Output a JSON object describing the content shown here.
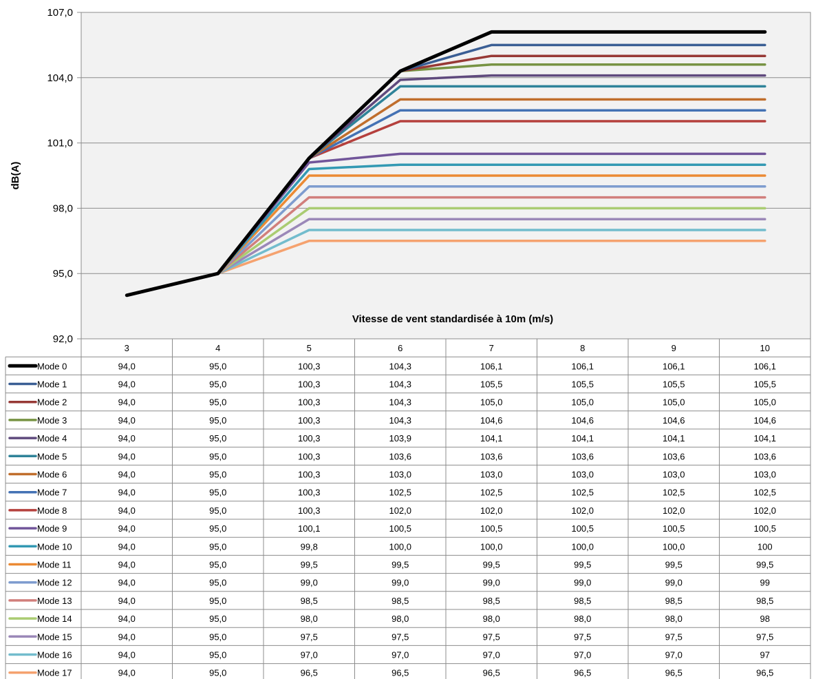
{
  "chart_data": {
    "type": "line",
    "title": "",
    "xlabel": "Vitesse de vent  standardisée à 10m (m/s)",
    "ylabel": "dB(A)",
    "ylim": [
      92,
      107
    ],
    "yticks": [
      "92,0",
      "95,0",
      "98,0",
      "101,0",
      "104,0",
      "107,0"
    ],
    "categories": [
      "3",
      "4",
      "5",
      "6",
      "7",
      "8",
      "9",
      "10"
    ],
    "grid": true,
    "legend": "data-table-left",
    "series": [
      {
        "name": "Mode 0",
        "color": "#000000",
        "values": [
          94.0,
          95.0,
          100.3,
          104.3,
          106.1,
          106.1,
          106.1,
          106.1
        ],
        "labels": [
          "94,0",
          "95,0",
          "100,3",
          "104,3",
          "106,1",
          "106,1",
          "106,1",
          "106,1"
        ]
      },
      {
        "name": "Mode 1",
        "color": "#3a5e94",
        "values": [
          94.0,
          95.0,
          100.3,
          104.3,
          105.5,
          105.5,
          105.5,
          105.5
        ],
        "labels": [
          "94,0",
          "95,0",
          "100,3",
          "104,3",
          "105,5",
          "105,5",
          "105,5",
          "105,5"
        ]
      },
      {
        "name": "Mode 2",
        "color": "#973935",
        "values": [
          94.0,
          95.0,
          100.3,
          104.3,
          105.0,
          105.0,
          105.0,
          105.0
        ],
        "labels": [
          "94,0",
          "95,0",
          "100,3",
          "104,3",
          "105,0",
          "105,0",
          "105,0",
          "105,0"
        ]
      },
      {
        "name": "Mode 3",
        "color": "#779343",
        "values": [
          94.0,
          95.0,
          100.3,
          104.3,
          104.6,
          104.6,
          104.6,
          104.6
        ],
        "labels": [
          "94,0",
          "95,0",
          "100,3",
          "104,3",
          "104,6",
          "104,6",
          "104,6",
          "104,6"
        ]
      },
      {
        "name": "Mode 4",
        "color": "#5f4a7d",
        "values": [
          94.0,
          95.0,
          100.3,
          103.9,
          104.1,
          104.1,
          104.1,
          104.1
        ],
        "labels": [
          "94,0",
          "95,0",
          "100,3",
          "103,9",
          "104,1",
          "104,1",
          "104,1",
          "104,1"
        ]
      },
      {
        "name": "Mode 5",
        "color": "#2f8399",
        "values": [
          94.0,
          95.0,
          100.3,
          103.6,
          103.6,
          103.6,
          103.6,
          103.6
        ],
        "labels": [
          "94,0",
          "95,0",
          "100,3",
          "103,6",
          "103,6",
          "103,6",
          "103,6",
          "103,6"
        ]
      },
      {
        "name": "Mode 6",
        "color": "#c06e2c",
        "values": [
          94.0,
          95.0,
          100.3,
          103.0,
          103.0,
          103.0,
          103.0,
          103.0
        ],
        "labels": [
          "94,0",
          "95,0",
          "100,3",
          "103,0",
          "103,0",
          "103,0",
          "103,0",
          "103,0"
        ]
      },
      {
        "name": "Mode 7",
        "color": "#4472b4",
        "values": [
          94.0,
          95.0,
          100.3,
          102.5,
          102.5,
          102.5,
          102.5,
          102.5
        ],
        "labels": [
          "94,0",
          "95,0",
          "100,3",
          "102,5",
          "102,5",
          "102,5",
          "102,5",
          "102,5"
        ]
      },
      {
        "name": "Mode 8",
        "color": "#b5403d",
        "values": [
          94.0,
          95.0,
          100.3,
          102.0,
          102.0,
          102.0,
          102.0,
          102.0
        ],
        "labels": [
          "94,0",
          "95,0",
          "100,3",
          "102,0",
          "102,0",
          "102,0",
          "102,0",
          "102,0"
        ]
      },
      {
        "name": "Mode 9",
        "color": "#71559a",
        "values": [
          94.0,
          95.0,
          100.1,
          100.5,
          100.5,
          100.5,
          100.5,
          100.5
        ],
        "labels": [
          "94,0",
          "95,0",
          "100,1",
          "100,5",
          "100,5",
          "100,5",
          "100,5",
          "100,5"
        ]
      },
      {
        "name": "Mode 10",
        "color": "#3399b3",
        "values": [
          94.0,
          95.0,
          99.8,
          100.0,
          100.0,
          100.0,
          100.0,
          100.0
        ],
        "labels": [
          "94,0",
          "95,0",
          "99,8",
          "100,0",
          "100,0",
          "100,0",
          "100,0",
          "100"
        ]
      },
      {
        "name": "Mode 11",
        "color": "#eb8a34",
        "values": [
          94.0,
          95.0,
          99.5,
          99.5,
          99.5,
          99.5,
          99.5,
          99.5
        ],
        "labels": [
          "94,0",
          "95,0",
          "99,5",
          "99,5",
          "99,5",
          "99,5",
          "99,5",
          "99,5"
        ]
      },
      {
        "name": "Mode 12",
        "color": "#7e9ccf",
        "values": [
          94.0,
          95.0,
          99.0,
          99.0,
          99.0,
          99.0,
          99.0,
          99.0
        ],
        "labels": [
          "94,0",
          "95,0",
          "99,0",
          "99,0",
          "99,0",
          "99,0",
          "99,0",
          "99"
        ]
      },
      {
        "name": "Mode 13",
        "color": "#d17f7c",
        "values": [
          94.0,
          95.0,
          98.5,
          98.5,
          98.5,
          98.5,
          98.5,
          98.5
        ],
        "labels": [
          "94,0",
          "95,0",
          "98,5",
          "98,5",
          "98,5",
          "98,5",
          "98,5",
          "98,5"
        ]
      },
      {
        "name": "Mode 14",
        "color": "#aacc72",
        "values": [
          94.0,
          95.0,
          98.0,
          98.0,
          98.0,
          98.0,
          98.0,
          98.0
        ],
        "labels": [
          "94,0",
          "95,0",
          "98,0",
          "98,0",
          "98,0",
          "98,0",
          "98,0",
          "98"
        ]
      },
      {
        "name": "Mode 15",
        "color": "#9b88b8",
        "values": [
          94.0,
          95.0,
          97.5,
          97.5,
          97.5,
          97.5,
          97.5,
          97.5
        ],
        "labels": [
          "94,0",
          "95,0",
          "97,5",
          "97,5",
          "97,5",
          "97,5",
          "97,5",
          "97,5"
        ]
      },
      {
        "name": "Mode 16",
        "color": "#72bccd",
        "values": [
          94.0,
          95.0,
          97.0,
          97.0,
          97.0,
          97.0,
          97.0,
          97.0
        ],
        "labels": [
          "94,0",
          "95,0",
          "97,0",
          "97,0",
          "97,0",
          "97,0",
          "97,0",
          "97"
        ]
      },
      {
        "name": "Mode 17",
        "color": "#f5a26f",
        "values": [
          94.0,
          95.0,
          96.5,
          96.5,
          96.5,
          96.5,
          96.5,
          96.5
        ],
        "labels": [
          "94,0",
          "95,0",
          "96,5",
          "96,5",
          "96,5",
          "96,5",
          "96,5",
          "96,5"
        ]
      }
    ]
  }
}
